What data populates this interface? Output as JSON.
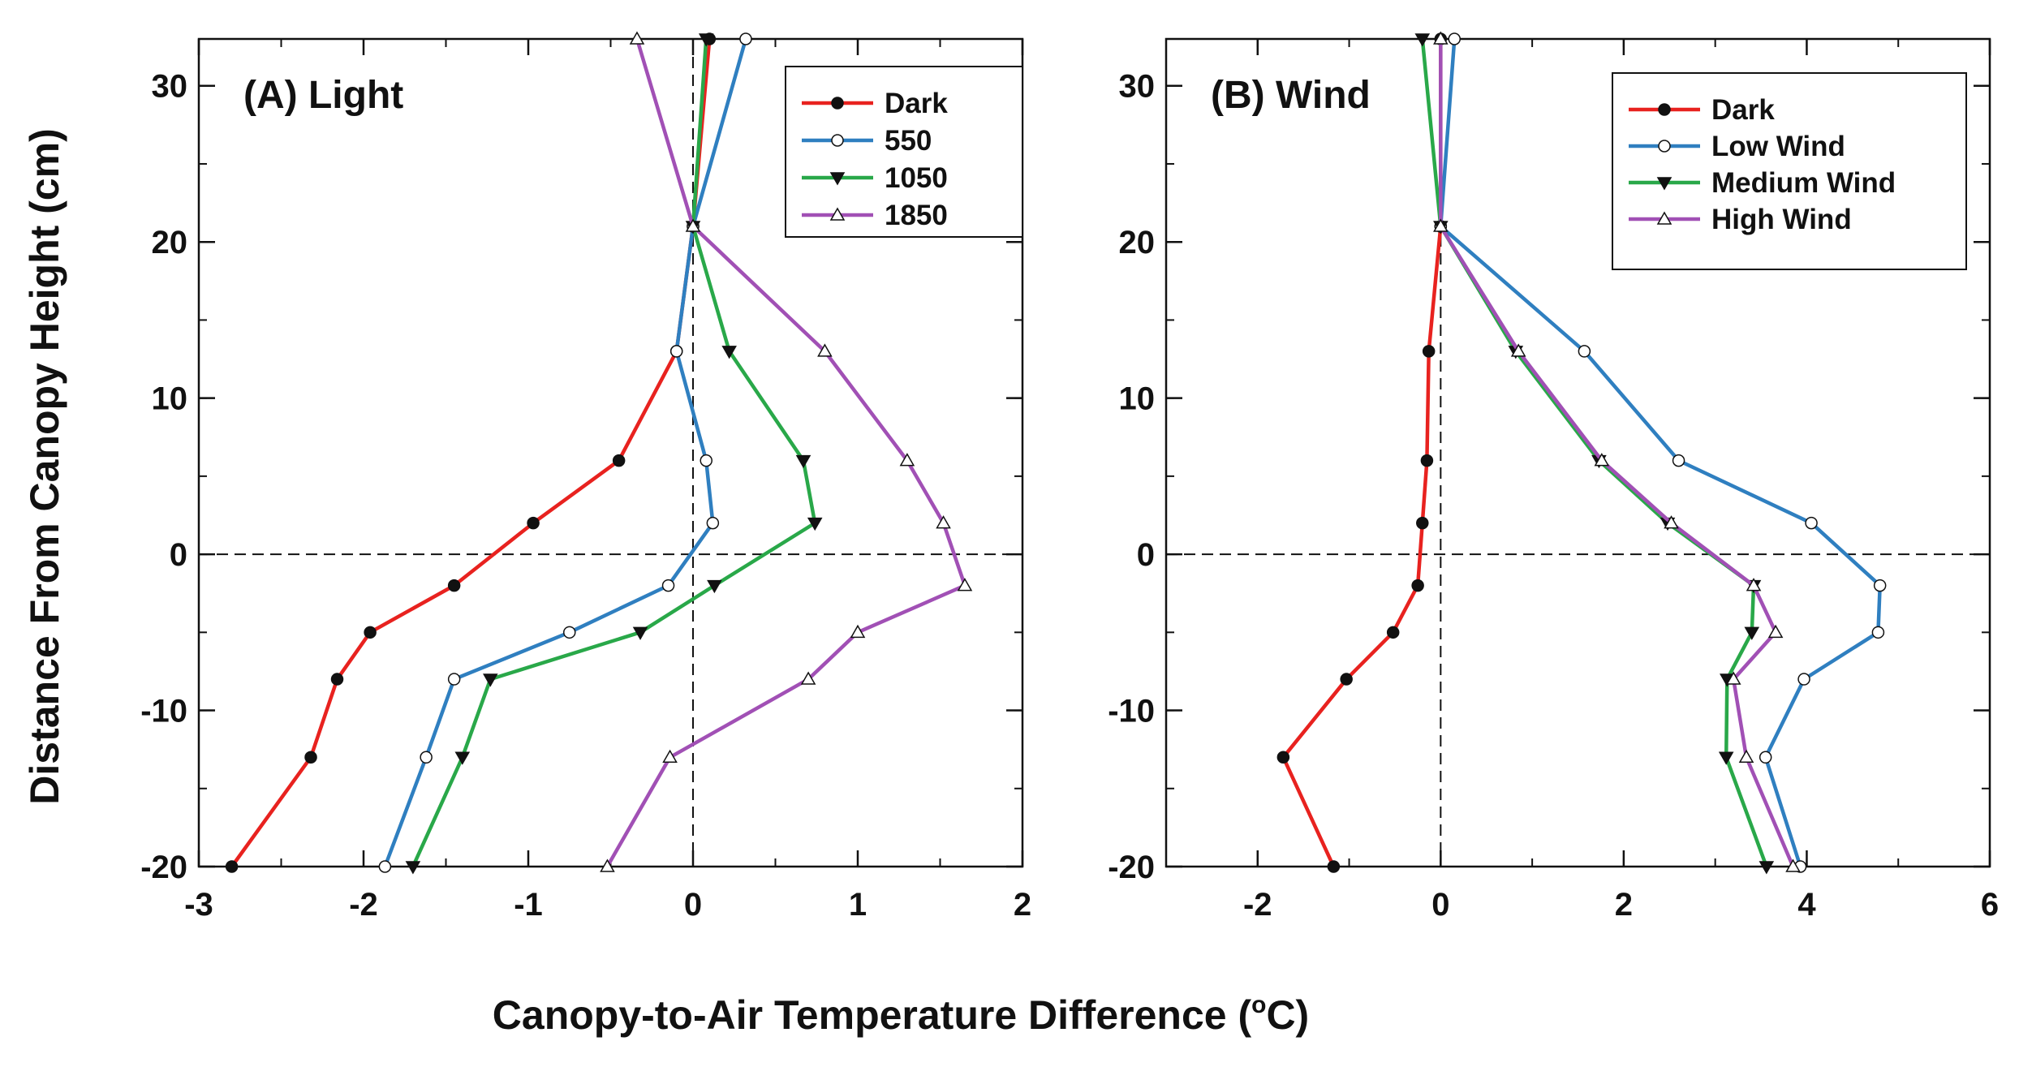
{
  "figure": {
    "ylabel": "Distance From Canopy Height (cm)",
    "xlabel": "Canopy-to-Air Temperature Difference (",
    "xlabel_unit": "C)",
    "xlabel_degree": "o"
  },
  "chart_data": [
    {
      "type": "line",
      "title": "(A) Light",
      "xlabel": "Canopy-to-Air Temperature Difference (°C)",
      "ylabel": "Distance From Canopy Height (cm)",
      "xlim": [
        -3,
        2
      ],
      "ylim": [
        -20,
        33
      ],
      "xticks": [
        -3,
        -2,
        -1,
        0,
        1,
        2
      ],
      "xtick_labels": [
        "-3",
        "-2",
        "-1",
        "0",
        "1",
        "2"
      ],
      "yticks": [
        -20,
        -10,
        0,
        10,
        20,
        30
      ],
      "ytick_labels": [
        "-20",
        "-10",
        "0",
        "10",
        "20",
        "30"
      ],
      "x_minor_step": 0.5,
      "y_minor_step": 5,
      "ref_x": 0,
      "ref_y": 0,
      "legend_position": "top-right",
      "series": [
        {
          "name": "Dark",
          "color": "#e8221f",
          "marker": "circle-filled",
          "x": [
            0.1,
            0.0,
            -0.1,
            -0.45,
            -0.97,
            -1.45,
            -1.96,
            -2.16,
            -2.32,
            -2.8
          ],
          "y": [
            33,
            21,
            13,
            6,
            2,
            -2,
            -5,
            -8,
            -13,
            -20
          ]
        },
        {
          "name": "550",
          "color": "#2f7fc0",
          "marker": "circle-open",
          "x": [
            0.32,
            0.0,
            -0.1,
            0.08,
            0.12,
            -0.15,
            -0.75,
            -1.45,
            -1.62,
            -1.87
          ],
          "y": [
            33,
            21,
            13,
            6,
            2,
            -2,
            -5,
            -8,
            -13,
            -20
          ]
        },
        {
          "name": "1050",
          "color": "#29a849",
          "marker": "triangle-down-filled",
          "x": [
            0.08,
            0.0,
            0.22,
            0.67,
            0.74,
            0.13,
            -0.32,
            -1.23,
            -1.4,
            -1.7
          ],
          "y": [
            33,
            21,
            13,
            6,
            2,
            -2,
            -5,
            -8,
            -13,
            -20
          ]
        },
        {
          "name": "1850",
          "color": "#a150b5",
          "marker": "triangle-up-open",
          "x": [
            -0.34,
            0.0,
            0.8,
            1.3,
            1.52,
            1.65,
            1.0,
            0.7,
            -0.14,
            -0.52
          ],
          "y": [
            33,
            21,
            13,
            6,
            2,
            -2,
            -5,
            -8,
            -13,
            -20
          ]
        }
      ]
    },
    {
      "type": "line",
      "title": "(B) Wind",
      "xlabel": "Canopy-to-Air Temperature Difference (°C)",
      "ylabel": "Distance From Canopy Height (cm)",
      "xlim": [
        -3,
        6
      ],
      "ylim": [
        -20,
        33
      ],
      "xticks": [
        -2,
        0,
        2,
        4,
        6
      ],
      "xtick_labels": [
        "-2",
        "0",
        "2",
        "4",
        "6"
      ],
      "yticks": [
        -20,
        -10,
        0,
        10,
        20,
        30
      ],
      "ytick_labels": [
        "-20",
        "-10",
        "0",
        "10",
        "20",
        "30"
      ],
      "x_minor_step": 1,
      "y_minor_step": 5,
      "ref_x": 0,
      "ref_y": 0,
      "legend_position": "top-right",
      "series": [
        {
          "name": "Dark",
          "color": "#e8221f",
          "marker": "circle-filled",
          "x": [
            0.0,
            0.0,
            -0.13,
            -0.15,
            -0.2,
            -0.25,
            -0.52,
            -1.03,
            -1.72,
            -1.17
          ],
          "y": [
            33,
            21,
            13,
            6,
            2,
            -2,
            -5,
            -8,
            -13,
            -20
          ]
        },
        {
          "name": "Low Wind",
          "color": "#2f7fc0",
          "marker": "circle-open",
          "x": [
            0.15,
            0.0,
            1.57,
            2.6,
            4.05,
            4.8,
            4.78,
            3.97,
            3.55,
            3.93
          ],
          "y": [
            33,
            21,
            13,
            6,
            2,
            -2,
            -5,
            -8,
            -13,
            -20
          ]
        },
        {
          "name": "Medium Wind",
          "color": "#29a849",
          "marker": "triangle-down-filled",
          "x": [
            -0.2,
            0.0,
            0.82,
            1.73,
            2.48,
            3.42,
            3.4,
            3.13,
            3.12,
            3.56
          ],
          "y": [
            33,
            21,
            13,
            6,
            2,
            -2,
            -5,
            -8,
            -13,
            -20
          ]
        },
        {
          "name": "High Wind",
          "color": "#a150b5",
          "marker": "triangle-up-open",
          "x": [
            0.0,
            0.0,
            0.85,
            1.76,
            2.52,
            3.42,
            3.66,
            3.2,
            3.34,
            3.85
          ],
          "y": [
            33,
            21,
            13,
            6,
            2,
            -2,
            -5,
            -8,
            -13,
            -20
          ]
        }
      ]
    }
  ]
}
